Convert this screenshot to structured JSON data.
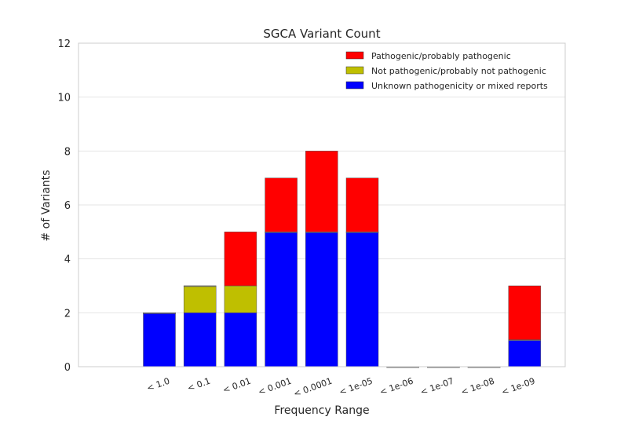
{
  "chart_data": {
    "type": "bar",
    "stacked": true,
    "title": "SGCA Variant Count",
    "xlabel": "Frequency Range",
    "ylabel": "# of Variants",
    "ylim": [
      0,
      12
    ],
    "yticks": [
      0,
      2,
      4,
      6,
      8,
      10,
      12
    ],
    "grid": "horizontal",
    "legend_position": "top-right",
    "categories": [
      "< 1.0",
      "< 0.1",
      "< 0.01",
      "< 0.001",
      "< 0.0001",
      "< 1e-05",
      "< 1e-06",
      "< 1e-07",
      "< 1e-08",
      "< 1e-09"
    ],
    "series": [
      {
        "name": "Unknown pathogenicity or mixed reports",
        "color": "#0000ff",
        "values": [
          2,
          2,
          2,
          5,
          5,
          5,
          0,
          0,
          0,
          1
        ]
      },
      {
        "name": "Not pathogenic/probably not pathogenic",
        "color": "#bfbf00",
        "values": [
          0,
          1,
          1,
          0,
          0,
          0,
          0,
          0,
          0,
          0
        ]
      },
      {
        "name": "Pathogenic/probably pathogenic",
        "color": "#ff0000",
        "values": [
          0,
          0,
          2,
          2,
          3,
          2,
          0,
          0,
          0,
          2
        ]
      }
    ],
    "legend_order": [
      2,
      1,
      0
    ]
  }
}
